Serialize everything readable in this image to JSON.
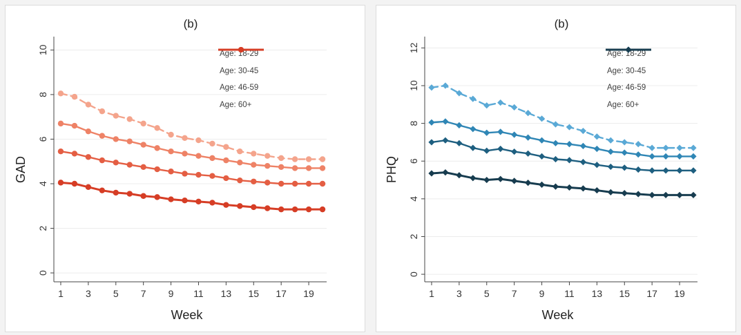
{
  "chart_data": [
    {
      "type": "line",
      "title": "(b)",
      "xlabel": "Week",
      "ylabel": "GAD",
      "xlim": [
        0.5,
        20.3
      ],
      "ylim": [
        -0.4,
        10.6
      ],
      "xticks": [
        1,
        3,
        5,
        7,
        9,
        11,
        13,
        15,
        17,
        19
      ],
      "yticks": [
        0,
        2,
        4,
        6,
        8,
        10
      ],
      "grid": true,
      "legend": "top-right",
      "x": [
        1,
        2,
        3,
        4,
        5,
        6,
        7,
        8,
        9,
        10,
        11,
        12,
        13,
        14,
        15,
        16,
        17,
        18,
        19,
        20
      ],
      "series": [
        {
          "name": "Age: 18-29",
          "color": "#f4a48c",
          "dash": true,
          "values": [
            8.05,
            7.9,
            7.55,
            7.25,
            7.05,
            6.9,
            6.7,
            6.5,
            6.2,
            6.05,
            5.95,
            5.8,
            5.65,
            5.45,
            5.35,
            5.25,
            5.15,
            5.1,
            5.1,
            5.1
          ]
        },
        {
          "name": "Age: 30-45",
          "color": "#ee8266",
          "dash": false,
          "values": [
            6.7,
            6.6,
            6.35,
            6.15,
            6.0,
            5.9,
            5.75,
            5.6,
            5.45,
            5.35,
            5.25,
            5.15,
            5.05,
            4.95,
            4.85,
            4.8,
            4.75,
            4.7,
            4.7,
            4.7
          ]
        },
        {
          "name": "Age: 46-59",
          "color": "#e45e43",
          "dash": false,
          "values": [
            5.45,
            5.35,
            5.2,
            5.05,
            4.95,
            4.85,
            4.75,
            4.65,
            4.55,
            4.45,
            4.4,
            4.35,
            4.25,
            4.15,
            4.1,
            4.05,
            4.0,
            4.0,
            4.0,
            4.0
          ]
        },
        {
          "name": "Age: 60+",
          "color": "#d63d25",
          "dash": false,
          "values": [
            4.05,
            4.0,
            3.85,
            3.7,
            3.6,
            3.55,
            3.45,
            3.4,
            3.3,
            3.25,
            3.2,
            3.15,
            3.05,
            3.0,
            2.95,
            2.9,
            2.85,
            2.85,
            2.85,
            2.85
          ]
        }
      ]
    },
    {
      "type": "line",
      "title": "(b)",
      "xlabel": "Week",
      "ylabel": "PHQ",
      "xlim": [
        0.5,
        20.3
      ],
      "ylim": [
        -0.4,
        12.6
      ],
      "xticks": [
        1,
        3,
        5,
        7,
        9,
        11,
        13,
        15,
        17,
        19
      ],
      "yticks": [
        0,
        2,
        4,
        6,
        8,
        10,
        12
      ],
      "grid": true,
      "legend": "top-right",
      "x": [
        1,
        2,
        3,
        4,
        5,
        6,
        7,
        8,
        9,
        10,
        11,
        12,
        13,
        14,
        15,
        16,
        17,
        18,
        19,
        20
      ],
      "series": [
        {
          "name": "Age: 18-29",
          "color": "#5aa9d6",
          "dash": true,
          "values": [
            9.9,
            10.0,
            9.6,
            9.3,
            8.95,
            9.1,
            8.85,
            8.55,
            8.25,
            7.95,
            7.8,
            7.6,
            7.3,
            7.1,
            7.0,
            6.9,
            6.7,
            6.7,
            6.7,
            6.7
          ]
        },
        {
          "name": "Age: 30-45",
          "color": "#2f86b5",
          "dash": false,
          "values": [
            8.05,
            8.1,
            7.9,
            7.7,
            7.5,
            7.55,
            7.4,
            7.25,
            7.1,
            6.95,
            6.9,
            6.8,
            6.65,
            6.5,
            6.45,
            6.35,
            6.25,
            6.25,
            6.25,
            6.25
          ]
        },
        {
          "name": "Age: 46-59",
          "color": "#1e5f80",
          "dash": false,
          "values": [
            7.0,
            7.1,
            6.95,
            6.7,
            6.55,
            6.65,
            6.5,
            6.4,
            6.25,
            6.1,
            6.05,
            5.95,
            5.8,
            5.7,
            5.65,
            5.55,
            5.5,
            5.5,
            5.5,
            5.5
          ]
        },
        {
          "name": "Age: 60+",
          "color": "#173c4f",
          "dash": false,
          "values": [
            5.35,
            5.4,
            5.25,
            5.1,
            5.0,
            5.05,
            4.95,
            4.85,
            4.75,
            4.65,
            4.6,
            4.55,
            4.45,
            4.35,
            4.3,
            4.25,
            4.2,
            4.2,
            4.2,
            4.2
          ]
        }
      ]
    }
  ]
}
